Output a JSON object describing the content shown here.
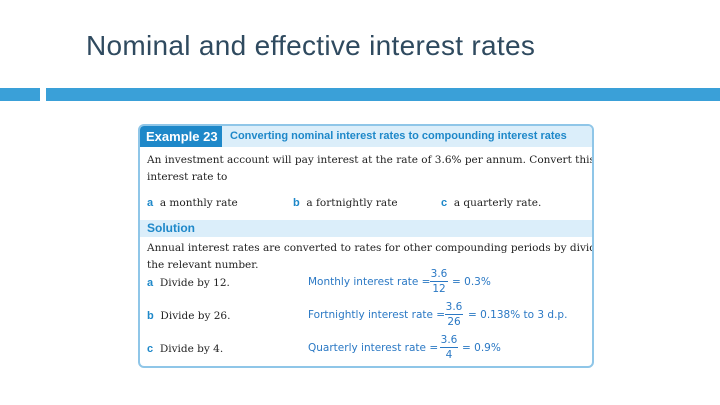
{
  "slide": {
    "title": "Nominal and effective interest rates"
  },
  "example": {
    "label": "Example 23",
    "title": "Converting nominal interest rates to compounding interest rates",
    "question_line1": "An investment account will pay interest at the rate of 3.6% per annum. Convert this",
    "question_line2": "interest rate to",
    "options": [
      {
        "letter": "a",
        "text": "a monthly rate"
      },
      {
        "letter": "b",
        "text": "a fortnightly rate"
      },
      {
        "letter": "c",
        "text": "a quarterly rate."
      }
    ]
  },
  "solution": {
    "label": "Solution",
    "intro_line1": "Annual interest rates are converted to rates for other compounding periods by dividing by",
    "intro_line2": "the relevant number.",
    "steps": [
      {
        "letter": "a",
        "text": "Divide by 12.",
        "lhs": "Monthly interest rate =",
        "num": "3.6",
        "den": "12",
        "rhs": "= 0.3%"
      },
      {
        "letter": "b",
        "text": "Divide by 26.",
        "lhs": "Fortnightly interest rate =",
        "num": "3.6",
        "den": "26",
        "rhs": "= 0.138% to 3 d.p."
      },
      {
        "letter": "c",
        "text": "Divide by 4.",
        "lhs": "Quarterly interest rate =",
        "num": "3.6",
        "den": "4",
        "rhs": "= 0.9%"
      }
    ]
  },
  "colors": {
    "accent_blue": "#1e88c9",
    "bar_blue": "#3aa0d8",
    "title_color": "#2f4a5f"
  }
}
